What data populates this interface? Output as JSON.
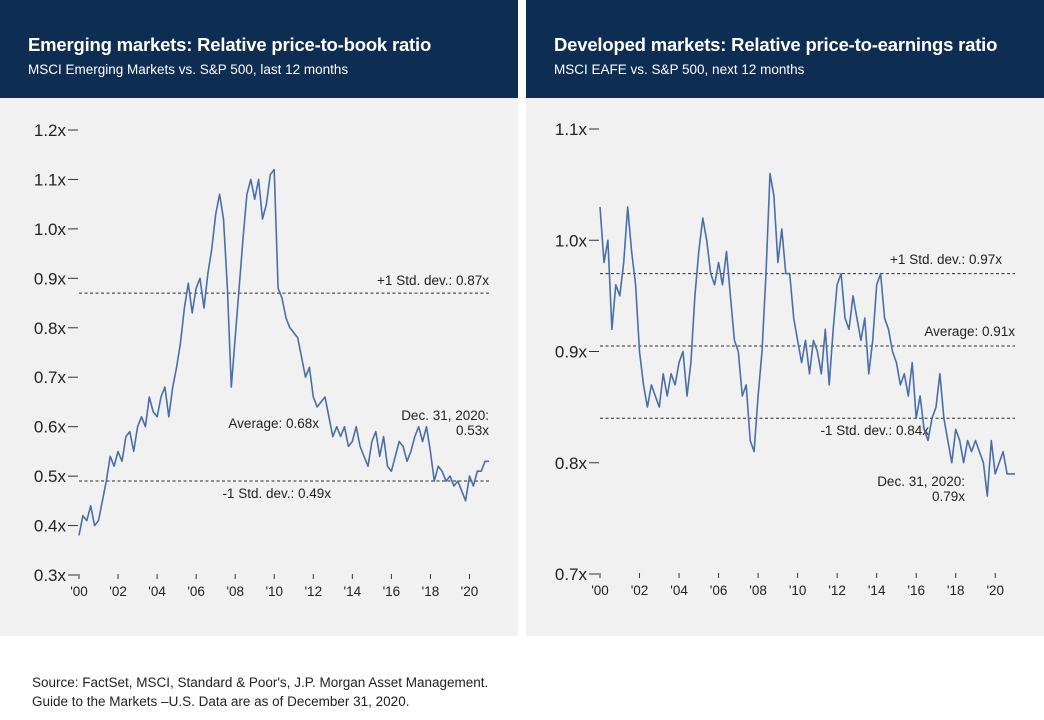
{
  "charts": [
    {
      "title": "Emerging markets: Relative price-to-book ratio",
      "subtitle": "MSCI Emerging Markets vs. S&P 500, last 12 months"
    },
    {
      "title": "Developed markets: Relative price-to-earnings ratio",
      "subtitle": "MSCI EAFE vs. S&P 500, next 12 months"
    }
  ],
  "source": {
    "line1": "Source: FactSet, MSCI, Standard & Poor's, J.P. Morgan Asset Management.",
    "line2": "Guide to the Markets –U.S. Data are as of December 31, 2020."
  },
  "colors": {
    "header": "#0d2d52",
    "line": "#4a6fa8",
    "background": "#f1f1f1"
  },
  "chart_data": [
    {
      "type": "line",
      "title": "Emerging markets: Relative price-to-book ratio",
      "subtitle": "MSCI Emerging Markets vs. S&P 500, last 12 months",
      "ylim": [
        0.3,
        1.2
      ],
      "yticks": [
        0.3,
        0.4,
        0.5,
        0.6,
        0.7,
        0.8,
        0.9,
        1.0,
        1.1,
        1.2
      ],
      "ytick_labels": [
        "0.3x",
        "0.4x",
        "0.5x",
        "0.6x",
        "0.7x",
        "0.8x",
        "0.9x",
        "1.0x",
        "1.1x",
        "1.2x"
      ],
      "xlim": [
        2000,
        2021
      ],
      "xticks": [
        2000,
        2002,
        2004,
        2006,
        2008,
        2010,
        2012,
        2014,
        2016,
        2018,
        2020
      ],
      "xtick_labels": [
        "'00",
        "'02",
        "'04",
        "'06",
        "'08",
        "'10",
        "'12",
        "'14",
        "'16",
        "'18",
        "'20"
      ],
      "reference_lines": [
        {
          "value": 0.87,
          "label": "+1 Std. dev.: 0.87x"
        },
        {
          "value": 0.49,
          "label": "-1 Std. dev.: 0.49x"
        }
      ],
      "annotations": [
        {
          "x": 2007.9,
          "y": 0.68,
          "label": "Average: 0.68x"
        },
        {
          "x": 2020.0,
          "y": 0.53,
          "label_lines": [
            "Dec. 31, 2020:",
            "0.53x"
          ]
        }
      ],
      "series": [
        {
          "points": [
            [
              2000.0,
              0.38
            ],
            [
              2000.2,
              0.42
            ],
            [
              2000.4,
              0.41
            ],
            [
              2000.6,
              0.44
            ],
            [
              2000.8,
              0.4
            ],
            [
              2001.0,
              0.41
            ],
            [
              2001.2,
              0.45
            ],
            [
              2001.4,
              0.49
            ],
            [
              2001.6,
              0.54
            ],
            [
              2001.8,
              0.52
            ],
            [
              2002.0,
              0.55
            ],
            [
              2002.2,
              0.53
            ],
            [
              2002.4,
              0.58
            ],
            [
              2002.6,
              0.59
            ],
            [
              2002.8,
              0.55
            ],
            [
              2003.0,
              0.6
            ],
            [
              2003.2,
              0.62
            ],
            [
              2003.4,
              0.6
            ],
            [
              2003.6,
              0.66
            ],
            [
              2003.8,
              0.63
            ],
            [
              2004.0,
              0.62
            ],
            [
              2004.2,
              0.66
            ],
            [
              2004.4,
              0.68
            ],
            [
              2004.6,
              0.62
            ],
            [
              2004.8,
              0.68
            ],
            [
              2005.0,
              0.72
            ],
            [
              2005.2,
              0.77
            ],
            [
              2005.4,
              0.84
            ],
            [
              2005.6,
              0.89
            ],
            [
              2005.8,
              0.83
            ],
            [
              2006.0,
              0.88
            ],
            [
              2006.2,
              0.9
            ],
            [
              2006.4,
              0.84
            ],
            [
              2006.6,
              0.91
            ],
            [
              2006.8,
              0.96
            ],
            [
              2007.0,
              1.03
            ],
            [
              2007.2,
              1.07
            ],
            [
              2007.4,
              1.02
            ],
            [
              2007.6,
              0.88
            ],
            [
              2007.8,
              0.68
            ],
            [
              2008.0,
              0.78
            ],
            [
              2008.2,
              0.88
            ],
            [
              2008.4,
              0.98
            ],
            [
              2008.6,
              1.07
            ],
            [
              2008.8,
              1.1
            ],
            [
              2009.0,
              1.06
            ],
            [
              2009.2,
              1.1
            ],
            [
              2009.4,
              1.02
            ],
            [
              2009.6,
              1.05
            ],
            [
              2009.8,
              1.11
            ],
            [
              2010.0,
              1.12
            ],
            [
              2010.2,
              0.88
            ],
            [
              2010.4,
              0.86
            ],
            [
              2010.6,
              0.82
            ],
            [
              2010.8,
              0.8
            ],
            [
              2011.0,
              0.79
            ],
            [
              2011.2,
              0.78
            ],
            [
              2011.4,
              0.74
            ],
            [
              2011.6,
              0.7
            ],
            [
              2011.8,
              0.72
            ],
            [
              2012.0,
              0.66
            ],
            [
              2012.2,
              0.64
            ],
            [
              2012.4,
              0.65
            ],
            [
              2012.6,
              0.66
            ],
            [
              2012.8,
              0.62
            ],
            [
              2013.0,
              0.58
            ],
            [
              2013.2,
              0.6
            ],
            [
              2013.4,
              0.58
            ],
            [
              2013.6,
              0.6
            ],
            [
              2013.8,
              0.56
            ],
            [
              2014.0,
              0.57
            ],
            [
              2014.2,
              0.6
            ],
            [
              2014.4,
              0.56
            ],
            [
              2014.6,
              0.54
            ],
            [
              2014.8,
              0.52
            ],
            [
              2015.0,
              0.57
            ],
            [
              2015.2,
              0.59
            ],
            [
              2015.4,
              0.54
            ],
            [
              2015.6,
              0.58
            ],
            [
              2015.8,
              0.52
            ],
            [
              2016.0,
              0.51
            ],
            [
              2016.2,
              0.54
            ],
            [
              2016.4,
              0.57
            ],
            [
              2016.6,
              0.56
            ],
            [
              2016.8,
              0.53
            ],
            [
              2017.0,
              0.55
            ],
            [
              2017.2,
              0.58
            ],
            [
              2017.4,
              0.6
            ],
            [
              2017.6,
              0.57
            ],
            [
              2017.8,
              0.6
            ],
            [
              2018.0,
              0.55
            ],
            [
              2018.2,
              0.49
            ],
            [
              2018.4,
              0.52
            ],
            [
              2018.6,
              0.51
            ],
            [
              2018.8,
              0.49
            ],
            [
              2019.0,
              0.5
            ],
            [
              2019.2,
              0.48
            ],
            [
              2019.4,
              0.49
            ],
            [
              2019.6,
              0.47
            ],
            [
              2019.8,
              0.45
            ],
            [
              2020.0,
              0.5
            ],
            [
              2020.2,
              0.48
            ],
            [
              2020.4,
              0.51
            ],
            [
              2020.6,
              0.51
            ],
            [
              2020.8,
              0.53
            ],
            [
              2021.0,
              0.53
            ]
          ]
        }
      ]
    },
    {
      "type": "line",
      "title": "Developed markets: Relative price-to-earnings ratio",
      "subtitle": "MSCI EAFE vs. S&P 500, next 12 months",
      "ylim": [
        0.7,
        1.1
      ],
      "yticks": [
        0.7,
        0.8,
        0.9,
        1.0,
        1.1
      ],
      "ytick_labels": [
        "0.7x",
        "0.8x",
        "0.9x",
        "1.0x",
        "1.1x"
      ],
      "xlim": [
        2000,
        2021
      ],
      "xticks": [
        2000,
        2002,
        2004,
        2006,
        2008,
        2010,
        2012,
        2014,
        2016,
        2018,
        2020
      ],
      "xtick_labels": [
        "'00",
        "'02",
        "'04",
        "'06",
        "'08",
        "'10",
        "'12",
        "'14",
        "'16",
        "'18",
        "'20"
      ],
      "reference_lines": [
        {
          "value": 0.97,
          "label": "+1 Std. dev.: 0.97x"
        },
        {
          "value": 0.905,
          "label": "Average: 0.91x"
        },
        {
          "value": 0.84,
          "label": "-1 Std. dev.: 0.84x"
        }
      ],
      "annotations": [
        {
          "x": 2020.0,
          "y": 0.79,
          "label_lines": [
            "Dec. 31, 2020:",
            "0.79x"
          ]
        }
      ],
      "series": [
        {
          "points": [
            [
              2000.0,
              1.03
            ],
            [
              2000.2,
              0.98
            ],
            [
              2000.4,
              1.0
            ],
            [
              2000.6,
              0.92
            ],
            [
              2000.8,
              0.96
            ],
            [
              2001.0,
              0.95
            ],
            [
              2001.2,
              0.98
            ],
            [
              2001.4,
              1.03
            ],
            [
              2001.6,
              0.99
            ],
            [
              2001.8,
              0.96
            ],
            [
              2002.0,
              0.9
            ],
            [
              2002.2,
              0.87
            ],
            [
              2002.4,
              0.85
            ],
            [
              2002.6,
              0.87
            ],
            [
              2002.8,
              0.86
            ],
            [
              2003.0,
              0.85
            ],
            [
              2003.2,
              0.88
            ],
            [
              2003.4,
              0.86
            ],
            [
              2003.6,
              0.88
            ],
            [
              2003.8,
              0.87
            ],
            [
              2004.0,
              0.89
            ],
            [
              2004.2,
              0.9
            ],
            [
              2004.4,
              0.86
            ],
            [
              2004.6,
              0.89
            ],
            [
              2004.8,
              0.95
            ],
            [
              2005.0,
              0.99
            ],
            [
              2005.2,
              1.02
            ],
            [
              2005.4,
              1.0
            ],
            [
              2005.6,
              0.97
            ],
            [
              2005.8,
              0.96
            ],
            [
              2006.0,
              0.98
            ],
            [
              2006.2,
              0.96
            ],
            [
              2006.4,
              0.99
            ],
            [
              2006.6,
              0.95
            ],
            [
              2006.8,
              0.91
            ],
            [
              2007.0,
              0.9
            ],
            [
              2007.2,
              0.86
            ],
            [
              2007.4,
              0.87
            ],
            [
              2007.6,
              0.82
            ],
            [
              2007.8,
              0.81
            ],
            [
              2008.0,
              0.86
            ],
            [
              2008.2,
              0.9
            ],
            [
              2008.4,
              0.97
            ],
            [
              2008.6,
              1.06
            ],
            [
              2008.8,
              1.04
            ],
            [
              2009.0,
              0.98
            ],
            [
              2009.2,
              1.01
            ],
            [
              2009.4,
              0.97
            ],
            [
              2009.6,
              0.97
            ],
            [
              2009.8,
              0.93
            ],
            [
              2010.0,
              0.91
            ],
            [
              2010.2,
              0.89
            ],
            [
              2010.4,
              0.91
            ],
            [
              2010.6,
              0.88
            ],
            [
              2010.8,
              0.91
            ],
            [
              2011.0,
              0.9
            ],
            [
              2011.2,
              0.88
            ],
            [
              2011.4,
              0.92
            ],
            [
              2011.6,
              0.87
            ],
            [
              2011.8,
              0.92
            ],
            [
              2012.0,
              0.96
            ],
            [
              2012.2,
              0.97
            ],
            [
              2012.4,
              0.93
            ],
            [
              2012.6,
              0.92
            ],
            [
              2012.8,
              0.95
            ],
            [
              2013.0,
              0.93
            ],
            [
              2013.2,
              0.91
            ],
            [
              2013.4,
              0.93
            ],
            [
              2013.6,
              0.88
            ],
            [
              2013.8,
              0.91
            ],
            [
              2014.0,
              0.96
            ],
            [
              2014.2,
              0.97
            ],
            [
              2014.4,
              0.93
            ],
            [
              2014.6,
              0.92
            ],
            [
              2014.8,
              0.9
            ],
            [
              2015.0,
              0.89
            ],
            [
              2015.2,
              0.87
            ],
            [
              2015.4,
              0.88
            ],
            [
              2015.6,
              0.86
            ],
            [
              2015.8,
              0.89
            ],
            [
              2016.0,
              0.84
            ],
            [
              2016.2,
              0.86
            ],
            [
              2016.4,
              0.83
            ],
            [
              2016.6,
              0.82
            ],
            [
              2016.8,
              0.84
            ],
            [
              2017.0,
              0.85
            ],
            [
              2017.2,
              0.88
            ],
            [
              2017.4,
              0.84
            ],
            [
              2017.6,
              0.82
            ],
            [
              2017.8,
              0.8
            ],
            [
              2018.0,
              0.83
            ],
            [
              2018.2,
              0.82
            ],
            [
              2018.4,
              0.8
            ],
            [
              2018.6,
              0.82
            ],
            [
              2018.8,
              0.81
            ],
            [
              2019.0,
              0.82
            ],
            [
              2019.2,
              0.81
            ],
            [
              2019.4,
              0.8
            ],
            [
              2019.6,
              0.77
            ],
            [
              2019.8,
              0.82
            ],
            [
              2020.0,
              0.79
            ],
            [
              2020.2,
              0.8
            ],
            [
              2020.4,
              0.81
            ],
            [
              2020.6,
              0.79
            ],
            [
              2020.8,
              0.79
            ],
            [
              2021.0,
              0.79
            ]
          ]
        }
      ]
    }
  ]
}
